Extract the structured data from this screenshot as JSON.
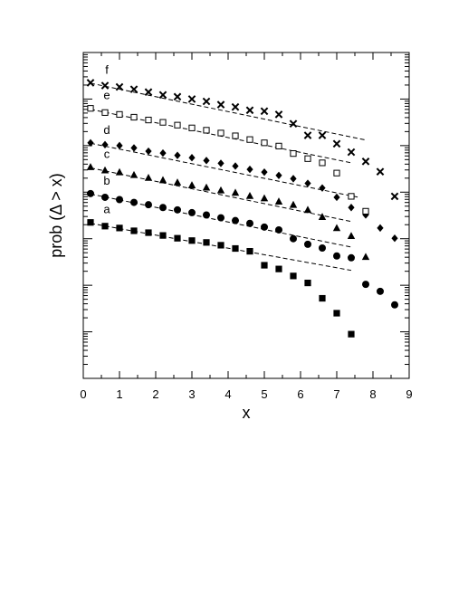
{
  "chart_data": {
    "type": "scatter",
    "title": "",
    "xlabel": "x",
    "ylabel": "prob (Δ > x)",
    "xlim": [
      0,
      9
    ],
    "xticks": [
      0,
      1,
      2,
      3,
      4,
      5,
      6,
      7,
      8,
      9
    ],
    "ylog": true,
    "ylim_decades": [
      0,
      7
    ],
    "yticklabels_shown": false,
    "grid": false,
    "legend": "none",
    "series": [
      {
        "name": "a",
        "marker": "square-filled",
        "x": [
          0.2,
          0.6,
          1.0,
          1.4,
          1.8,
          2.2,
          2.6,
          3.0,
          3.4,
          3.8,
          4.2,
          4.6,
          5.0,
          5.4,
          5.8,
          6.2,
          6.6,
          7.0,
          7.4
        ],
        "log10_y": [
          3.35,
          3.27,
          3.23,
          3.17,
          3.13,
          3.07,
          3.01,
          2.96,
          2.92,
          2.86,
          2.79,
          2.73,
          2.43,
          2.35,
          2.2,
          2.05,
          1.72,
          1.4,
          0.95
        ],
        "fit": {
          "x": [
            0.2,
            7.4
          ],
          "log10_y": [
            3.33,
            2.32
          ]
        }
      },
      {
        "name": "b",
        "marker": "circle-filled",
        "x": [
          0.2,
          0.6,
          1.0,
          1.4,
          1.8,
          2.2,
          2.6,
          3.0,
          3.4,
          3.8,
          4.2,
          4.6,
          5.0,
          5.4,
          5.8,
          6.2,
          6.6,
          7.0,
          7.4,
          7.8,
          8.2,
          8.6
        ],
        "log10_y": [
          3.97,
          3.89,
          3.84,
          3.78,
          3.73,
          3.67,
          3.62,
          3.56,
          3.51,
          3.45,
          3.39,
          3.33,
          3.25,
          3.19,
          3.0,
          2.88,
          2.8,
          2.63,
          2.59,
          2.02,
          1.87,
          1.58
        ],
        "fit": {
          "x": [
            0.2,
            7.4
          ],
          "log10_y": [
            3.96,
            2.82
          ]
        }
      },
      {
        "name": "c",
        "marker": "triangle-filled",
        "x": [
          0.2,
          0.6,
          1.0,
          1.4,
          1.8,
          2.2,
          2.6,
          3.0,
          3.4,
          3.8,
          4.2,
          4.6,
          5.0,
          5.4,
          5.8,
          6.2,
          6.6,
          7.0,
          7.4,
          7.8
        ],
        "log10_y": [
          4.54,
          4.47,
          4.43,
          4.37,
          4.31,
          4.26,
          4.21,
          4.15,
          4.1,
          4.04,
          3.99,
          3.92,
          3.87,
          3.8,
          3.73,
          3.62,
          3.47,
          3.23,
          3.06,
          2.61
        ],
        "fit": {
          "x": [
            0.2,
            7.4
          ],
          "log10_y": [
            4.52,
            3.37
          ]
        }
      },
      {
        "name": "d",
        "marker": "diamond-filled",
        "x": [
          0.2,
          0.6,
          1.0,
          1.4,
          1.8,
          2.2,
          2.6,
          3.0,
          3.4,
          3.8,
          4.2,
          4.6,
          5.0,
          5.4,
          5.8,
          6.2,
          6.6,
          7.0,
          7.4,
          7.8,
          8.2,
          8.6
        ],
        "log10_y": [
          5.06,
          5.02,
          5.0,
          4.95,
          4.88,
          4.84,
          4.79,
          4.74,
          4.68,
          4.62,
          4.56,
          4.49,
          4.43,
          4.36,
          4.29,
          4.19,
          4.09,
          3.89,
          3.67,
          3.51,
          3.23,
          3.01
        ],
        "fit": {
          "x": [
            0.2,
            7.6
          ],
          "log10_y": [
            5.05,
            3.89
          ]
        }
      },
      {
        "name": "e",
        "marker": "square-open",
        "x": [
          0.2,
          0.6,
          1.0,
          1.4,
          1.8,
          2.2,
          2.6,
          3.0,
          3.4,
          3.8,
          4.2,
          4.6,
          5.0,
          5.4,
          5.8,
          6.2,
          6.6,
          7.0,
          7.4,
          7.8
        ],
        "log10_y": [
          5.8,
          5.71,
          5.67,
          5.61,
          5.55,
          5.5,
          5.44,
          5.38,
          5.33,
          5.27,
          5.21,
          5.13,
          5.06,
          4.99,
          4.83,
          4.72,
          4.63,
          4.41,
          3.91,
          3.59
        ],
        "fit": {
          "x": [
            0.2,
            7.4
          ],
          "log10_y": [
            5.78,
            4.63
          ]
        }
      },
      {
        "name": "f",
        "marker": "x-cross",
        "x": [
          0.2,
          0.6,
          1.0,
          1.4,
          1.8,
          2.2,
          2.6,
          3.0,
          3.4,
          3.8,
          4.2,
          4.6,
          5.0,
          5.4,
          5.8,
          6.2,
          6.6,
          7.0,
          7.4,
          7.8,
          8.2,
          8.6
        ],
        "log10_y": [
          6.35,
          6.29,
          6.26,
          6.21,
          6.15,
          6.09,
          6.05,
          6.0,
          5.95,
          5.88,
          5.83,
          5.76,
          5.74,
          5.67,
          5.47,
          5.22,
          5.22,
          5.04,
          4.86,
          4.66,
          4.44,
          3.91
        ],
        "fit": {
          "x": [
            0.2,
            7.8
          ],
          "log10_y": [
            6.34,
            5.12
          ]
        }
      }
    ]
  }
}
